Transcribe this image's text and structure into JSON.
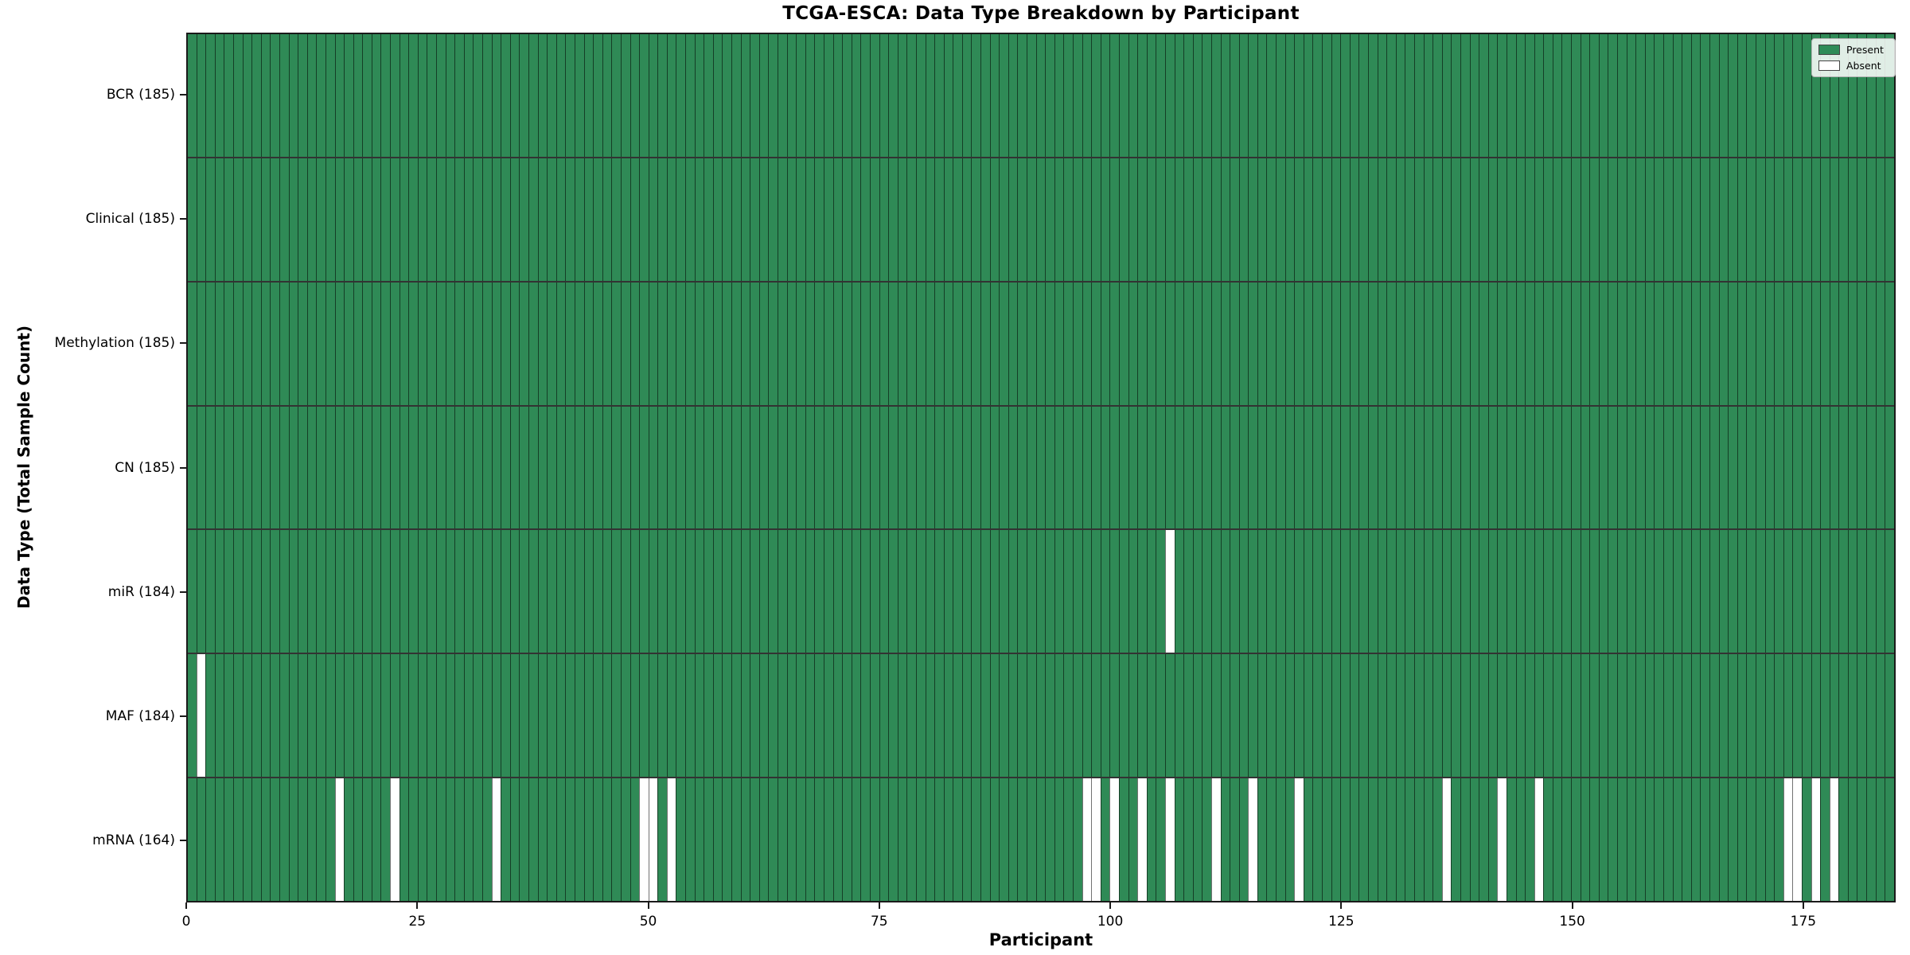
{
  "title": "TCGA-ESCA: Data Type Breakdown by Participant",
  "xlabel": "Participant",
  "ylabel": "Data Type (Total Sample Count)",
  "legend": {
    "items": [
      {
        "label": "Present",
        "color": "#2e8b57"
      },
      {
        "label": "Absent",
        "color": "#ffffff"
      }
    ]
  },
  "colors": {
    "present": "#2f8a56",
    "absent": "#ffffff",
    "bar_edge": "rgba(0,0,0,0.55)",
    "row_divider": "rgba(0,0,0,0.8)",
    "spine": "#1a1a1a",
    "legend_bg": "rgba(255,255,255,0.85)",
    "legend_border": "#b3b3b3"
  },
  "chart_data": {
    "type": "heatmap",
    "x_axis": {
      "label": "Participant",
      "ticks": [
        0,
        25,
        50,
        75,
        100,
        125,
        150,
        175
      ],
      "range": [
        0,
        185
      ]
    },
    "n_participants": 185,
    "legend_position": "upper right",
    "grid": false,
    "rows": [
      {
        "name": "BCR",
        "label": "BCR (185)",
        "total": 185,
        "absent_indices": []
      },
      {
        "name": "Clinical",
        "label": "Clinical (185)",
        "total": 185,
        "absent_indices": []
      },
      {
        "name": "Methylation",
        "label": "Methylation (185)",
        "total": 185,
        "absent_indices": []
      },
      {
        "name": "CN",
        "label": "CN (185)",
        "total": 185,
        "absent_indices": []
      },
      {
        "name": "miR",
        "label": "miR (184)",
        "total": 184,
        "absent_indices": [
          106
        ]
      },
      {
        "name": "MAF",
        "label": "MAF (184)",
        "total": 184,
        "absent_indices": [
          1
        ]
      },
      {
        "name": "mRNA",
        "label": "mRNA (164)",
        "total": 164,
        "absent_indices": [
          16,
          22,
          33,
          49,
          50,
          52,
          97,
          98,
          100,
          103,
          106,
          111,
          115,
          120,
          136,
          142,
          146,
          173,
          174,
          176,
          178
        ]
      }
    ]
  }
}
